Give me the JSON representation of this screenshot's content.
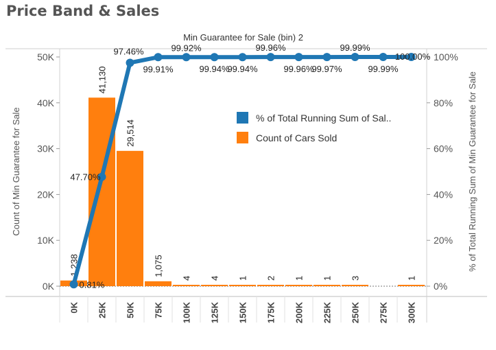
{
  "header": {
    "title": "Price Band & Sales"
  },
  "chart_data": {
    "type": "bar",
    "title": "Min Guarantee for Sale (bin) 2",
    "categories": [
      "0K",
      "25K",
      "50K",
      "75K",
      "100K",
      "125K",
      "150K",
      "175K",
      "200K",
      "225K",
      "250K",
      "275K",
      "300K"
    ],
    "ylabel_left": "Count of Min Guarantee for Sale",
    "ylabel_right": "% of Total Running Sum of Min Guarantee for Sale",
    "ylim_left": [
      0,
      50000
    ],
    "yticks_left": [
      "0K",
      "10K",
      "20K",
      "30K",
      "40K",
      "50K"
    ],
    "ylim_right": [
      0,
      100
    ],
    "yticks_right": [
      "0%",
      "20%",
      "40%",
      "60%",
      "80%",
      "100%"
    ],
    "series": [
      {
        "name": "Count of Cars Sold",
        "type": "bar",
        "color": "#ff7f0e",
        "values": [
          1238,
          41130,
          29514,
          1075,
          4,
          4,
          1,
          2,
          1,
          1,
          3,
          null,
          1
        ],
        "labels": [
          "1,238",
          "41,130",
          "29,514",
          "1,075",
          "4",
          "4",
          "1",
          "2",
          "1",
          "1",
          "3",
          "",
          "1"
        ]
      },
      {
        "name": "% of Total Running Sum of Sal..",
        "type": "line",
        "color": "#1f77b4",
        "values": [
          0.81,
          47.7,
          97.46,
          99.91,
          99.92,
          99.94,
          99.94,
          99.96,
          99.96,
          99.97,
          99.99,
          99.99,
          100.0
        ],
        "labels": [
          "0.81%",
          "47.70%",
          "97.46%",
          "99.91%",
          "99.92%",
          "99.94%",
          "99.94%",
          "99.96%",
          "99.96%",
          "99.97%",
          "99.99%",
          "99.99%",
          "100.00%"
        ]
      }
    ],
    "legend": {
      "position": "right",
      "items": [
        "% of Total Running Sum of Sal..",
        "Count of Cars Sold"
      ]
    },
    "grid": false
  }
}
